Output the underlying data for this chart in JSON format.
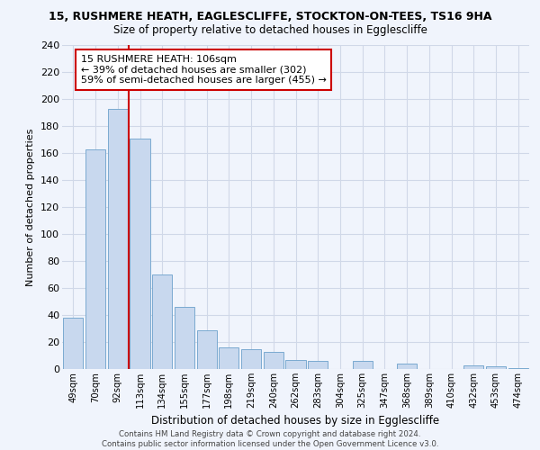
{
  "title1": "15, RUSHMERE HEATH, EAGLESCLIFFE, STOCKTON-ON-TEES, TS16 9HA",
  "title2": "Size of property relative to detached houses in Egglescliffe",
  "xlabel": "Distribution of detached houses by size in Egglescliffe",
  "ylabel": "Number of detached properties",
  "bar_labels": [
    "49sqm",
    "70sqm",
    "92sqm",
    "113sqm",
    "134sqm",
    "155sqm",
    "177sqm",
    "198sqm",
    "219sqm",
    "240sqm",
    "262sqm",
    "283sqm",
    "304sqm",
    "325sqm",
    "347sqm",
    "368sqm",
    "389sqm",
    "410sqm",
    "432sqm",
    "453sqm",
    "474sqm"
  ],
  "bar_values": [
    38,
    163,
    193,
    171,
    70,
    46,
    29,
    16,
    15,
    13,
    7,
    6,
    0,
    6,
    0,
    4,
    0,
    0,
    3,
    2,
    1
  ],
  "bar_color": "#c8d8ee",
  "bar_edge_color": "#7aaad0",
  "vline_color": "#cc0000",
  "annotation_title": "15 RUSHMERE HEATH: 106sqm",
  "annotation_line1": "← 39% of detached houses are smaller (302)",
  "annotation_line2": "59% of semi-detached houses are larger (455) →",
  "annotation_box_color": "#ffffff",
  "annotation_box_edge_color": "#cc0000",
  "ylim": [
    0,
    240
  ],
  "yticks": [
    0,
    20,
    40,
    60,
    80,
    100,
    120,
    140,
    160,
    180,
    200,
    220,
    240
  ],
  "footer_line1": "Contains HM Land Registry data © Crown copyright and database right 2024.",
  "footer_line2": "Contains public sector information licensed under the Open Government Licence v3.0.",
  "grid_color": "#d0d8e8",
  "background_color": "#f0f4fc"
}
